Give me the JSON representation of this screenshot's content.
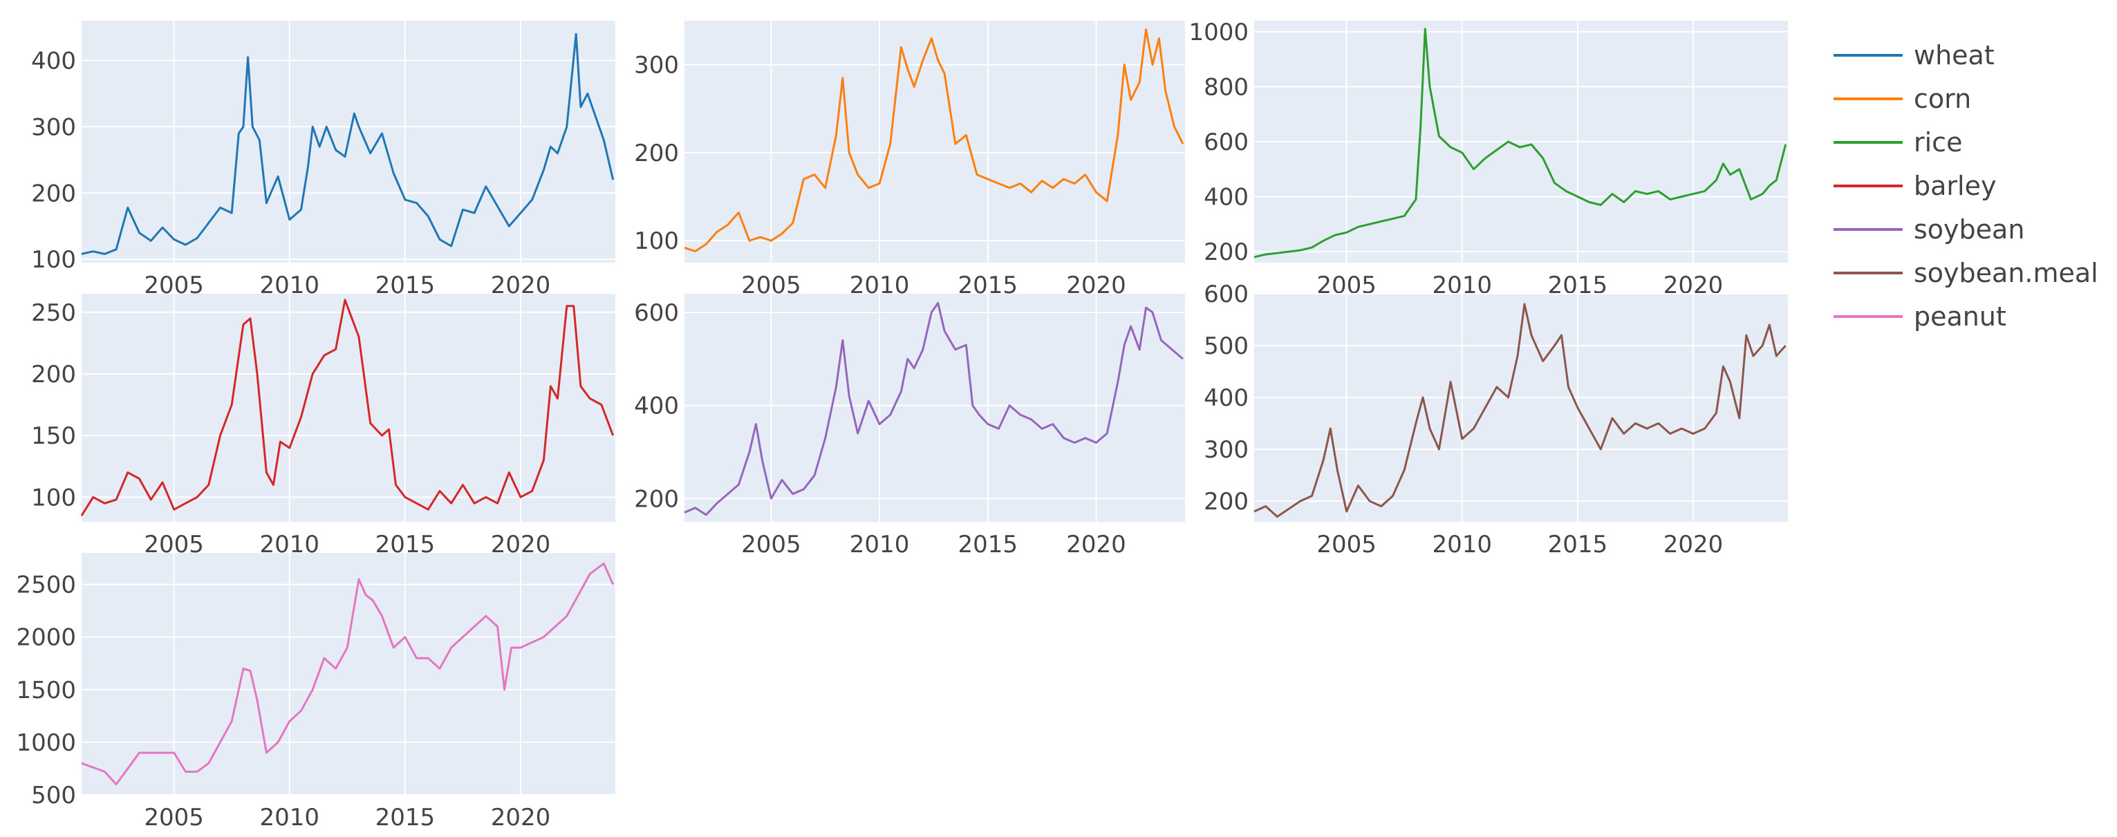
{
  "colors": {
    "plot_bg": "#e5ecf6",
    "grid": "#ffffff",
    "wheat": "#1f77b4",
    "corn": "#ff7f0e",
    "rice": "#2ca02c",
    "barley": "#d62728",
    "soybean": "#9467bd",
    "soybean_meal": "#8c564b",
    "peanut": "#e377c2"
  },
  "legend": {
    "items": [
      {
        "label": "wheat",
        "color": "#1f77b4"
      },
      {
        "label": "corn",
        "color": "#ff7f0e"
      },
      {
        "label": "rice",
        "color": "#2ca02c"
      },
      {
        "label": "barley",
        "color": "#d62728"
      },
      {
        "label": "soybean",
        "color": "#9467bd"
      },
      {
        "label": "soybean.meal",
        "color": "#8c564b"
      },
      {
        "label": "peanut",
        "color": "#e377c2"
      }
    ]
  },
  "chart_data": [
    {
      "type": "line",
      "name": "wheat",
      "color": "#1f77b4",
      "xlim": [
        2001,
        2024.1
      ],
      "ylim": [
        95,
        460
      ],
      "xticks": [
        2005,
        2010,
        2015,
        2020
      ],
      "yticks": [
        100,
        200,
        300,
        400
      ],
      "x": [
        2001,
        2001.5,
        2002,
        2002.5,
        2003,
        2003.5,
        2004,
        2004.5,
        2005,
        2005.5,
        2006,
        2006.5,
        2007,
        2007.5,
        2007.8,
        2008,
        2008.2,
        2008.4,
        2008.7,
        2009,
        2009.5,
        2010,
        2010.5,
        2010.8,
        2011,
        2011.3,
        2011.6,
        2012,
        2012.4,
        2012.8,
        2013,
        2013.5,
        2014,
        2014.5,
        2015,
        2015.5,
        2016,
        2016.5,
        2017,
        2017.5,
        2018,
        2018.5,
        2019,
        2019.5,
        2020,
        2020.5,
        2021,
        2021.3,
        2021.6,
        2022,
        2022.2,
        2022.4,
        2022.6,
        2022.9,
        2023.2,
        2023.6,
        2024
      ],
      "y": [
        108,
        112,
        108,
        115,
        178,
        140,
        128,
        148,
        130,
        122,
        132,
        155,
        178,
        170,
        290,
        300,
        405,
        300,
        280,
        185,
        225,
        160,
        175,
        240,
        300,
        270,
        300,
        265,
        255,
        320,
        300,
        260,
        290,
        230,
        190,
        185,
        165,
        130,
        120,
        175,
        170,
        210,
        180,
        150,
        170,
        190,
        235,
        270,
        260,
        300,
        370,
        440,
        330,
        350,
        320,
        280,
        220
      ]
    },
    {
      "type": "line",
      "name": "corn",
      "color": "#ff7f0e",
      "xlim": [
        2001,
        2024.1
      ],
      "ylim": [
        75,
        350
      ],
      "xticks": [
        2005,
        2010,
        2015,
        2020
      ],
      "yticks": [
        100,
        200,
        300
      ],
      "x": [
        2001,
        2001.5,
        2002,
        2002.5,
        2003,
        2003.5,
        2004,
        2004.5,
        2005,
        2005.5,
        2006,
        2006.5,
        2007,
        2007.5,
        2008,
        2008.3,
        2008.6,
        2009,
        2009.5,
        2010,
        2010.5,
        2011,
        2011.3,
        2011.6,
        2012,
        2012.4,
        2012.7,
        2013,
        2013.5,
        2014,
        2014.5,
        2015,
        2015.5,
        2016,
        2016.5,
        2017,
        2017.5,
        2018,
        2018.5,
        2019,
        2019.5,
        2020,
        2020.5,
        2021,
        2021.3,
        2021.6,
        2022,
        2022.3,
        2022.6,
        2022.9,
        2023.2,
        2023.6,
        2024
      ],
      "y": [
        92,
        88,
        96,
        110,
        118,
        132,
        100,
        104,
        100,
        108,
        120,
        170,
        175,
        160,
        220,
        285,
        200,
        175,
        160,
        165,
        210,
        320,
        295,
        275,
        305,
        330,
        305,
        290,
        210,
        220,
        175,
        170,
        165,
        160,
        165,
        155,
        168,
        160,
        170,
        165,
        175,
        155,
        145,
        220,
        300,
        260,
        280,
        340,
        300,
        330,
        270,
        230,
        210
      ]
    },
    {
      "type": "line",
      "name": "rice",
      "color": "#2ca02c",
      "xlim": [
        2001,
        2024.1
      ],
      "ylim": [
        160,
        1040
      ],
      "xticks": [
        2005,
        2010,
        2015,
        2020
      ],
      "yticks": [
        200,
        400,
        600,
        800,
        1000
      ],
      "x": [
        2001,
        2001.5,
        2002,
        2002.5,
        2003,
        2003.5,
        2004,
        2004.5,
        2005,
        2005.5,
        2006,
        2006.5,
        2007,
        2007.5,
        2008,
        2008.2,
        2008.4,
        2008.6,
        2009,
        2009.5,
        2010,
        2010.5,
        2011,
        2011.5,
        2012,
        2012.5,
        2013,
        2013.5,
        2014,
        2014.5,
        2015,
        2015.5,
        2016,
        2016.5,
        2017,
        2017.5,
        2018,
        2018.5,
        2019,
        2019.5,
        2020,
        2020.5,
        2021,
        2021.3,
        2021.6,
        2022,
        2022.5,
        2023,
        2023.3,
        2023.6,
        2024
      ],
      "y": [
        180,
        190,
        195,
        200,
        205,
        215,
        240,
        260,
        270,
        290,
        300,
        310,
        320,
        330,
        390,
        650,
        1010,
        800,
        620,
        580,
        560,
        500,
        540,
        570,
        600,
        580,
        590,
        540,
        450,
        420,
        400,
        380,
        370,
        410,
        380,
        420,
        410,
        420,
        390,
        400,
        410,
        420,
        460,
        520,
        480,
        500,
        390,
        410,
        440,
        460,
        590
      ]
    },
    {
      "type": "line",
      "name": "barley",
      "color": "#d62728",
      "xlim": [
        2001,
        2024.1
      ],
      "ylim": [
        80,
        265
      ],
      "xticks": [
        2005,
        2010,
        2015,
        2020
      ],
      "yticks": [
        100,
        150,
        200,
        250
      ],
      "x": [
        2001,
        2001.5,
        2002,
        2002.5,
        2003,
        2003.5,
        2004,
        2004.5,
        2005,
        2005.5,
        2006,
        2006.5,
        2007,
        2007.5,
        2008,
        2008.3,
        2008.6,
        2009,
        2009.3,
        2009.6,
        2010,
        2010.5,
        2011,
        2011.5,
        2012,
        2012.4,
        2012.7,
        2013,
        2013.5,
        2014,
        2014.3,
        2014.6,
        2015,
        2015.5,
        2016,
        2016.5,
        2017,
        2017.5,
        2018,
        2018.5,
        2019,
        2019.5,
        2020,
        2020.5,
        2021,
        2021.3,
        2021.6,
        2022,
        2022.3,
        2022.6,
        2023,
        2023.5,
        2024
      ],
      "y": [
        85,
        100,
        95,
        98,
        120,
        115,
        98,
        112,
        90,
        95,
        100,
        110,
        150,
        175,
        240,
        245,
        200,
        120,
        110,
        145,
        140,
        165,
        200,
        215,
        220,
        260,
        245,
        230,
        160,
        150,
        155,
        110,
        100,
        95,
        90,
        105,
        95,
        110,
        95,
        100,
        95,
        120,
        100,
        105,
        130,
        190,
        180,
        255,
        255,
        190,
        180,
        175,
        150
      ]
    },
    {
      "type": "line",
      "name": "soybean",
      "color": "#9467bd",
      "xlim": [
        2001,
        2024.1
      ],
      "ylim": [
        150,
        640
      ],
      "xticks": [
        2005,
        2010,
        2015,
        2020
      ],
      "yticks": [
        200,
        400,
        600
      ],
      "x": [
        2001,
        2001.5,
        2002,
        2002.5,
        2003,
        2003.5,
        2004,
        2004.3,
        2004.6,
        2005,
        2005.5,
        2006,
        2006.5,
        2007,
        2007.5,
        2008,
        2008.3,
        2008.6,
        2009,
        2009.5,
        2010,
        2010.5,
        2011,
        2011.3,
        2011.6,
        2012,
        2012.4,
        2012.7,
        2013,
        2013.5,
        2014,
        2014.3,
        2014.6,
        2015,
        2015.5,
        2016,
        2016.5,
        2017,
        2017.5,
        2018,
        2018.5,
        2019,
        2019.5,
        2020,
        2020.5,
        2021,
        2021.3,
        2021.6,
        2022,
        2022.3,
        2022.6,
        2023,
        2023.5,
        2024
      ],
      "y": [
        170,
        180,
        165,
        190,
        210,
        230,
        300,
        360,
        280,
        200,
        240,
        210,
        220,
        250,
        330,
        440,
        540,
        420,
        340,
        410,
        360,
        380,
        430,
        500,
        480,
        520,
        600,
        620,
        560,
        520,
        530,
        400,
        380,
        360,
        350,
        400,
        380,
        370,
        350,
        360,
        330,
        320,
        330,
        320,
        340,
        450,
        530,
        570,
        520,
        610,
        600,
        540,
        520,
        500
      ]
    },
    {
      "type": "line",
      "name": "soybean.meal",
      "color": "#8c564b",
      "xlim": [
        2001,
        2024.1
      ],
      "ylim": [
        160,
        600
      ],
      "xticks": [
        2005,
        2010,
        2015,
        2020
      ],
      "yticks": [
        200,
        300,
        400,
        500,
        600
      ],
      "x": [
        2001,
        2001.5,
        2002,
        2002.5,
        2003,
        2003.5,
        2004,
        2004.3,
        2004.6,
        2005,
        2005.5,
        2006,
        2006.5,
        2007,
        2007.5,
        2008,
        2008.3,
        2008.6,
        2009,
        2009.5,
        2010,
        2010.5,
        2011,
        2011.5,
        2012,
        2012.4,
        2012.7,
        2013,
        2013.5,
        2014,
        2014.3,
        2014.6,
        2015,
        2015.5,
        2016,
        2016.5,
        2017,
        2017.5,
        2018,
        2018.5,
        2019,
        2019.5,
        2020,
        2020.5,
        2021,
        2021.3,
        2021.6,
        2022,
        2022.3,
        2022.6,
        2023,
        2023.3,
        2023.6,
        2024
      ],
      "y": [
        180,
        190,
        170,
        185,
        200,
        210,
        280,
        340,
        260,
        180,
        230,
        200,
        190,
        210,
        260,
        350,
        400,
        340,
        300,
        430,
        320,
        340,
        380,
        420,
        400,
        480,
        580,
        520,
        470,
        500,
        520,
        420,
        380,
        340,
        300,
        360,
        330,
        350,
        340,
        350,
        330,
        340,
        330,
        340,
        370,
        460,
        430,
        360,
        520,
        480,
        500,
        540,
        480,
        500
      ]
    },
    {
      "type": "line",
      "name": "peanut",
      "color": "#e377c2",
      "xlim": [
        2001,
        2024.1
      ],
      "ylim": [
        500,
        2800
      ],
      "xticks": [
        2005,
        2010,
        2015,
        2020
      ],
      "yticks": [
        500,
        1000,
        1500,
        2000,
        2500
      ],
      "x": [
        2001,
        2001.5,
        2002,
        2002.5,
        2003,
        2003.5,
        2004,
        2004.5,
        2005,
        2005.5,
        2006,
        2006.5,
        2007,
        2007.5,
        2008,
        2008.3,
        2008.6,
        2009,
        2009.5,
        2010,
        2010.5,
        2011,
        2011.5,
        2012,
        2012.5,
        2013,
        2013.3,
        2013.6,
        2014,
        2014.5,
        2015,
        2015.5,
        2016,
        2016.5,
        2017,
        2017.5,
        2018,
        2018.5,
        2019,
        2019.3,
        2019.6,
        2020,
        2020.5,
        2021,
        2021.5,
        2022,
        2022.5,
        2023,
        2023.3,
        2023.6,
        2024
      ],
      "y": [
        800,
        760,
        720,
        600,
        750,
        900,
        900,
        900,
        900,
        720,
        720,
        800,
        1000,
        1200,
        1700,
        1680,
        1400,
        900,
        1000,
        1200,
        1300,
        1500,
        1800,
        1700,
        1900,
        2550,
        2400,
        2350,
        2200,
        1900,
        2000,
        1800,
        1800,
        1700,
        1900,
        2000,
        2100,
        2200,
        2100,
        1500,
        1900,
        1900,
        1950,
        2000,
        2100,
        2200,
        2400,
        2600,
        2650,
        2700,
        2500
      ]
    }
  ]
}
